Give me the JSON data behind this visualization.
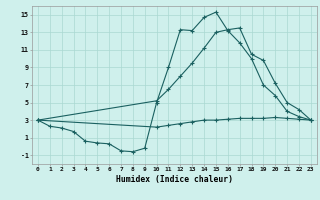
{
  "xlabel": "Humidex (Indice chaleur)",
  "bg_color": "#cff0ec",
  "line_color": "#1a6060",
  "grid_color": "#aad8d2",
  "xlim": [
    -0.5,
    23.5
  ],
  "ylim": [
    -2.0,
    16.0
  ],
  "yticks": [
    -1,
    1,
    3,
    5,
    7,
    9,
    11,
    13,
    15
  ],
  "xticks": [
    0,
    1,
    2,
    3,
    4,
    5,
    6,
    7,
    8,
    9,
    10,
    11,
    12,
    13,
    14,
    15,
    16,
    17,
    18,
    19,
    20,
    21,
    22,
    23
  ],
  "line1_x": [
    0,
    1,
    2,
    3,
    4,
    5,
    6,
    7,
    8,
    9,
    10,
    11,
    12,
    13,
    14,
    15,
    16,
    17,
    18,
    19,
    20,
    21,
    22,
    23
  ],
  "line1_y": [
    3.0,
    2.3,
    2.1,
    1.7,
    0.6,
    0.4,
    0.3,
    -0.5,
    -0.6,
    -0.2,
    5.0,
    9.0,
    13.3,
    13.2,
    14.7,
    15.3,
    13.2,
    11.8,
    10.0,
    7.0,
    5.8,
    4.0,
    3.4,
    3.0
  ],
  "line2_x": [
    0,
    10,
    11,
    12,
    13,
    14,
    15,
    16,
    17,
    18,
    19,
    20,
    21,
    22,
    23
  ],
  "line2_y": [
    3.0,
    5.2,
    6.5,
    8.0,
    9.5,
    11.2,
    13.0,
    13.3,
    13.5,
    10.5,
    9.8,
    7.2,
    5.0,
    4.2,
    3.0
  ],
  "line3_x": [
    0,
    10,
    11,
    12,
    13,
    14,
    15,
    16,
    17,
    18,
    19,
    20,
    21,
    22,
    23
  ],
  "line3_y": [
    3.0,
    2.2,
    2.4,
    2.6,
    2.8,
    3.0,
    3.0,
    3.1,
    3.2,
    3.2,
    3.2,
    3.3,
    3.2,
    3.1,
    3.0
  ]
}
